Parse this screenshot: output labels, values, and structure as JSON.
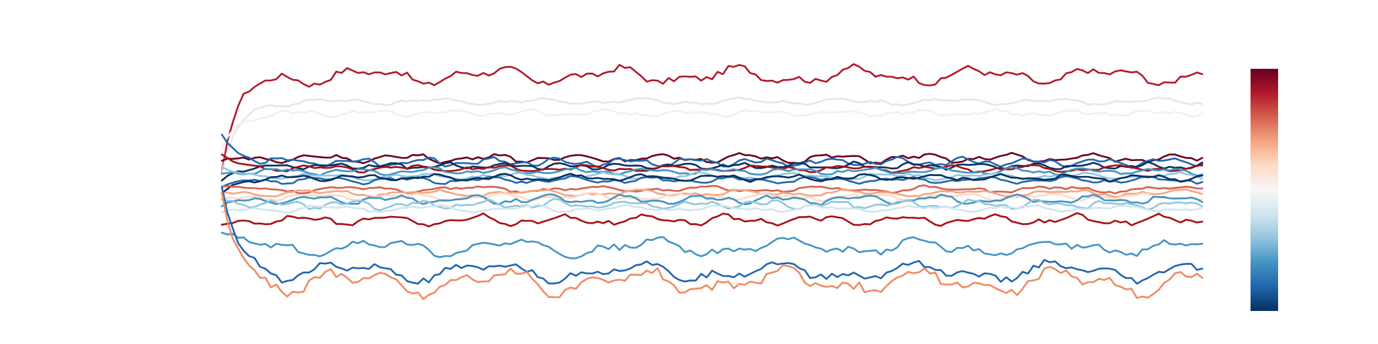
{
  "chart_data": {
    "type": "line",
    "title": "",
    "xlabel": "",
    "ylabel": "",
    "legend": "none",
    "grid": false,
    "axes_visible": false,
    "colorbar": {
      "placement": "right",
      "colormap": "RdBu_r",
      "stops": [
        "#67001f",
        "#b2182b",
        "#d6604d",
        "#f4a582",
        "#fddbc7",
        "#f7f7f7",
        "#d1e5f0",
        "#92c5de",
        "#4393c3",
        "#2166ac",
        "#053061"
      ]
    },
    "x_range": [
      0,
      100
    ],
    "y_range": [
      -100,
      100
    ],
    "series": [
      {
        "color": "#b2182b",
        "start": 0,
        "settle": 76,
        "amp": 8,
        "freq": 0.21,
        "phase": 0.3
      },
      {
        "color": "#e6e6ea",
        "start": 0,
        "settle": 56,
        "amp": 3,
        "freq": 0.25,
        "phase": 1.1
      },
      {
        "color": "#f0f0f2",
        "start": 20,
        "settle": 47,
        "amp": 3,
        "freq": 0.33,
        "phase": 2.0
      },
      {
        "color": "#67001f",
        "start": 10,
        "settle": 12,
        "amp": 4,
        "freq": 0.3,
        "phase": 0.6
      },
      {
        "color": "#2166ac",
        "start": 30,
        "settle": 9,
        "amp": 4,
        "freq": 0.38,
        "phase": 1.7
      },
      {
        "color": "#053061",
        "start": -5,
        "settle": 6,
        "amp": 3,
        "freq": 0.44,
        "phase": 2.4
      },
      {
        "color": "#a50f15",
        "start": 15,
        "settle": 4,
        "amp": 3,
        "freq": 0.29,
        "phase": 0.9
      },
      {
        "color": "#4393c3",
        "start": 0,
        "settle": 2,
        "amp": 3,
        "freq": 0.35,
        "phase": 2.8
      },
      {
        "color": "#92c5de",
        "start": 5,
        "settle": -2,
        "amp": 3,
        "freq": 0.27,
        "phase": 1.3
      },
      {
        "color": "#2166ac",
        "start": -10,
        "settle": -5,
        "amp": 3,
        "freq": 0.31,
        "phase": 0.2
      },
      {
        "color": "#053061",
        "start": -15,
        "settle": -3,
        "amp": 3,
        "freq": 0.36,
        "phase": 1.9
      },
      {
        "color": "#d6604d",
        "start": -10,
        "settle": -12,
        "amp": 3,
        "freq": 0.22,
        "phase": 0.7
      },
      {
        "color": "#f4a582",
        "start": -15,
        "settle": -15,
        "amp": 3,
        "freq": 0.24,
        "phase": 2.2
      },
      {
        "color": "#fddbc7",
        "start": -20,
        "settle": -18,
        "amp": 3,
        "freq": 0.28,
        "phase": 1.5
      },
      {
        "color": "#4393c3",
        "start": -25,
        "settle": -20,
        "amp": 4,
        "freq": 0.33,
        "phase": 0.4
      },
      {
        "color": "#92c5de",
        "start": -20,
        "settle": -24,
        "amp": 4,
        "freq": 0.37,
        "phase": 2.6
      },
      {
        "color": "#d1e5f0",
        "start": -30,
        "settle": -27,
        "amp": 3,
        "freq": 0.26,
        "phase": 1.0
      },
      {
        "color": "#a50f15",
        "start": -40,
        "settle": -36,
        "amp": 5,
        "freq": 0.3,
        "phase": 1.8
      },
      {
        "color": "#4393c3",
        "start": -45,
        "settle": -57,
        "amp": 8,
        "freq": 0.19,
        "phase": 0.5
      },
      {
        "color": "#2166ac",
        "start": -10,
        "settle": -76,
        "amp": 9,
        "freq": 0.18,
        "phase": 2.3
      },
      {
        "color": "#ef8a62",
        "start": -15,
        "settle": -84,
        "amp": 12,
        "freq": 0.18,
        "phase": 2.1
      }
    ]
  }
}
